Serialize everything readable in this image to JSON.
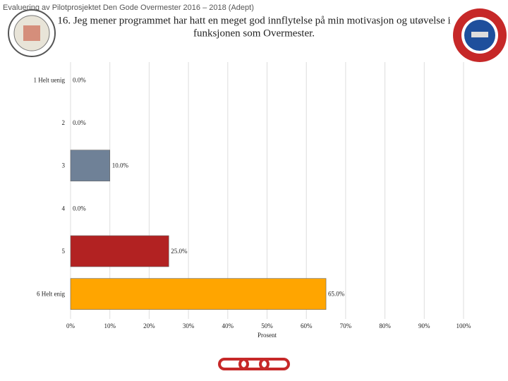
{
  "header": "Evaluering av Pilotprosjektet Den Gode Overmester 2016 – 2018 (Adept)",
  "chart_data": {
    "type": "bar",
    "orientation": "horizontal",
    "title_lines": [
      "16. Jeg mener programmet har hatt en meget god innflytelse på min motivasjon og utøvelse i",
      "funksjonen som Overmester."
    ],
    "categories": [
      "1 Helt uenig",
      "2",
      "3",
      "4",
      "5",
      "6 Helt enig"
    ],
    "values": [
      0,
      0,
      10,
      0,
      25,
      65
    ],
    "value_labels": [
      "0.0%",
      "0.0%",
      "10.0%",
      "0.0%",
      "25.0%",
      "65.0%"
    ],
    "colors": [
      "#6f8197",
      "#6f8197",
      "#6f8197",
      "#6f8197",
      "#b22222",
      "#ffa500"
    ],
    "xlim": [
      0,
      100
    ],
    "xticks": [
      {
        "value": 0,
        "label": "0%"
      },
      {
        "value": 10,
        "label": "10%"
      },
      {
        "value": 20,
        "label": "20%"
      },
      {
        "value": 30,
        "label": "30%"
      },
      {
        "value": 40,
        "label": "40%"
      },
      {
        "value": 50,
        "label": "50%"
      },
      {
        "value": 60,
        "label": "60%"
      },
      {
        "value": 70,
        "label": "70%"
      },
      {
        "value": 80,
        "label": "80%"
      },
      {
        "value": 90,
        "label": "90%"
      },
      {
        "value": 100,
        "label": "100%"
      }
    ],
    "xlabel": "Prosent",
    "grid": true
  }
}
